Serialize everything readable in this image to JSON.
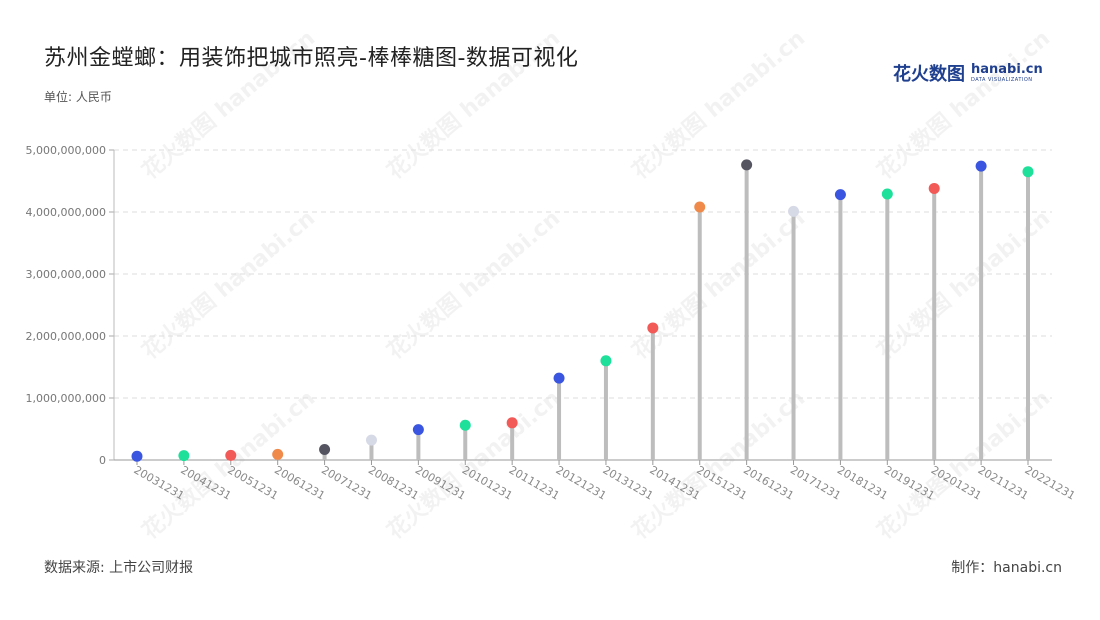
{
  "title": "苏州金螳螂：用装饰把城市照亮-棒棒糖图-数据可视化",
  "logo": {
    "cn": "花火数图",
    "en": "hanabi.cn",
    "sub": "DATA VISUALIZATION"
  },
  "unit_label": "单位: 人民币",
  "source": "数据来源: 上市公司财报",
  "credit": "制作：hanabi.cn",
  "watermark": "花火数图 hanabi.cn",
  "chart_data": {
    "type": "lollipop",
    "title": "苏州金螳螂：用装饰把城市照亮-棒棒糖图-数据可视化",
    "ylabel": "单位: 人民币",
    "ylim": [
      0,
      5000000000
    ],
    "yticks": [
      0,
      1000000000,
      2000000000,
      3000000000,
      4000000000,
      5000000000
    ],
    "grid": true,
    "categories": [
      "20031231",
      "20041231",
      "20051231",
      "20061231",
      "20071231",
      "20081231",
      "20091231",
      "20101231",
      "20111231",
      "20121231",
      "20131231",
      "20141231",
      "20151231",
      "20161231",
      "20171231",
      "20181231",
      "20191231",
      "20201231",
      "20211231",
      "20221231"
    ],
    "values": [
      60000000,
      70000000,
      75000000,
      90000000,
      170000000,
      320000000,
      490000000,
      560000000,
      600000000,
      1320000000,
      1600000000,
      2130000000,
      4080000000,
      4760000000,
      4010000000,
      4280000000,
      4290000000,
      4380000000,
      4740000000,
      4650000000
    ],
    "colors": [
      "#3a55e0",
      "#1ee09a",
      "#f25a57",
      "#f08a4b",
      "#555562",
      "#d6d9e6",
      "#3a55e0",
      "#1ee09a",
      "#f25a57",
      "#3a55e0",
      "#1ee09a",
      "#f25a57",
      "#f08a4b",
      "#555562",
      "#d6d9e6",
      "#3a55e0",
      "#1ee09a",
      "#f25a57",
      "#3a55e0",
      "#1ee09a"
    ],
    "stem_color": "#bdbdbd"
  }
}
